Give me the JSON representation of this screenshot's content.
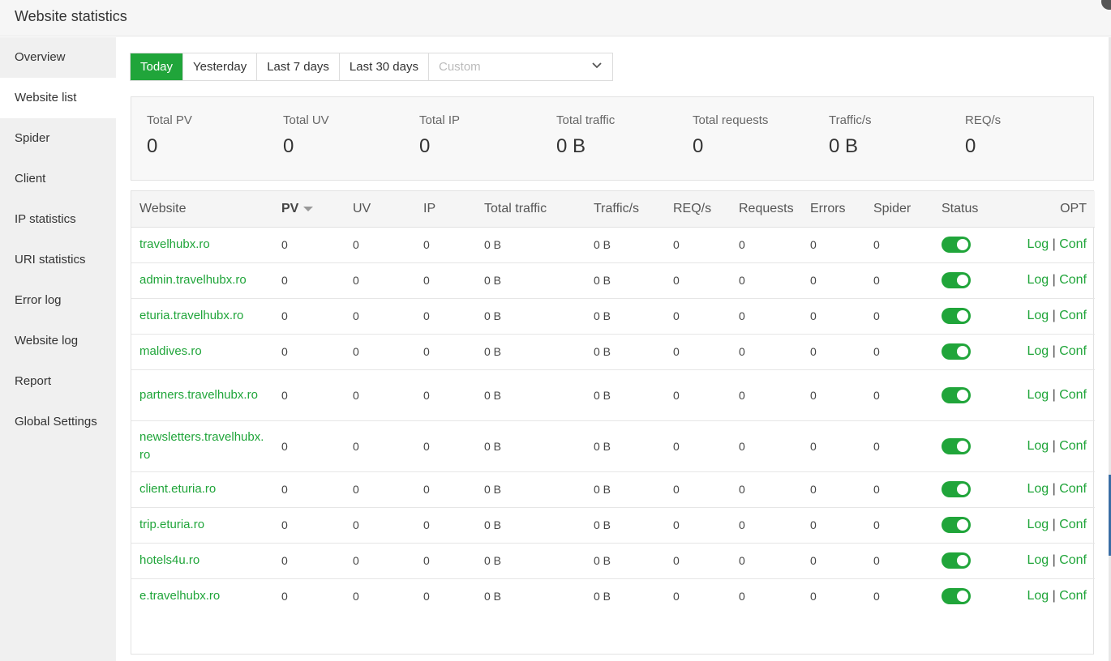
{
  "window": {
    "title": "Website statistics"
  },
  "sidebar": {
    "items": [
      {
        "label": "Overview",
        "active": false
      },
      {
        "label": "Website list",
        "active": true
      },
      {
        "label": "Spider",
        "active": false
      },
      {
        "label": "Client",
        "active": false
      },
      {
        "label": "IP statistics",
        "active": false
      },
      {
        "label": "URI statistics",
        "active": false
      },
      {
        "label": "Error log",
        "active": false
      },
      {
        "label": "Website log",
        "active": false
      },
      {
        "label": "Report",
        "active": false
      },
      {
        "label": "Global Settings",
        "active": false
      }
    ]
  },
  "date_tabs": {
    "today": "Today",
    "yesterday": "Yesterday",
    "last7": "Last 7 days",
    "last30": "Last 30 days",
    "custom_placeholder": "Custom"
  },
  "summary": {
    "total_pv": {
      "label": "Total PV",
      "value": "0"
    },
    "total_uv": {
      "label": "Total UV",
      "value": "0"
    },
    "total_ip": {
      "label": "Total IP",
      "value": "0"
    },
    "total_traffic": {
      "label": "Total traffic",
      "value": "0 B"
    },
    "total_requests": {
      "label": "Total requests",
      "value": "0"
    },
    "traffic_s": {
      "label": "Traffic/s",
      "value": "0 B"
    },
    "req_s": {
      "label": "REQ/s",
      "value": "0"
    }
  },
  "table": {
    "headers": {
      "website": "Website",
      "pv": "PV",
      "uv": "UV",
      "ip": "IP",
      "total_traffic": "Total traffic",
      "traffic_s": "Traffic/s",
      "req_s": "REQ/s",
      "requests": "Requests",
      "errors": "Errors",
      "spider": "Spider",
      "status": "Status",
      "opt": "OPT"
    },
    "log_label": "Log",
    "conf_label": "Conf",
    "separator": "|",
    "rows": [
      {
        "site": "travelhubx.ro",
        "pv": "0",
        "uv": "0",
        "ip": "0",
        "traffic": "0 B",
        "traffic_s": "0 B",
        "req_s": "0",
        "requests": "0",
        "errors": "0",
        "spider": "0",
        "status": true
      },
      {
        "site": "admin.travelhubx.ro",
        "pv": "0",
        "uv": "0",
        "ip": "0",
        "traffic": "0 B",
        "traffic_s": "0 B",
        "req_s": "0",
        "requests": "0",
        "errors": "0",
        "spider": "0",
        "status": true
      },
      {
        "site": "eturia.travelhubx.ro",
        "pv": "0",
        "uv": "0",
        "ip": "0",
        "traffic": "0 B",
        "traffic_s": "0 B",
        "req_s": "0",
        "requests": "0",
        "errors": "0",
        "spider": "0",
        "status": true
      },
      {
        "site": "maldives.ro",
        "pv": "0",
        "uv": "0",
        "ip": "0",
        "traffic": "0 B",
        "traffic_s": "0 B",
        "req_s": "0",
        "requests": "0",
        "errors": "0",
        "spider": "0",
        "status": true
      },
      {
        "site": "partners.travelhubx.ro",
        "pv": "0",
        "uv": "0",
        "ip": "0",
        "traffic": "0 B",
        "traffic_s": "0 B",
        "req_s": "0",
        "requests": "0",
        "errors": "0",
        "spider": "0",
        "status": true
      },
      {
        "site": "newsletters.travelhubx.ro",
        "pv": "0",
        "uv": "0",
        "ip": "0",
        "traffic": "0 B",
        "traffic_s": "0 B",
        "req_s": "0",
        "requests": "0",
        "errors": "0",
        "spider": "0",
        "status": true
      },
      {
        "site": "client.eturia.ro",
        "pv": "0",
        "uv": "0",
        "ip": "0",
        "traffic": "0 B",
        "traffic_s": "0 B",
        "req_s": "0",
        "requests": "0",
        "errors": "0",
        "spider": "0",
        "status": true
      },
      {
        "site": "trip.eturia.ro",
        "pv": "0",
        "uv": "0",
        "ip": "0",
        "traffic": "0 B",
        "traffic_s": "0 B",
        "req_s": "0",
        "requests": "0",
        "errors": "0",
        "spider": "0",
        "status": true
      },
      {
        "site": "hotels4u.ro",
        "pv": "0",
        "uv": "0",
        "ip": "0",
        "traffic": "0 B",
        "traffic_s": "0 B",
        "req_s": "0",
        "requests": "0",
        "errors": "0",
        "spider": "0",
        "status": true
      },
      {
        "site": "e.travelhubx.ro",
        "pv": "0",
        "uv": "0",
        "ip": "0",
        "traffic": "0 B",
        "traffic_s": "0 B",
        "req_s": "0",
        "requests": "0",
        "errors": "0",
        "spider": "0",
        "status": true
      }
    ]
  },
  "colors": {
    "accent": "#20a53a",
    "sidebar_bg": "#f0f0f0",
    "summary_bg": "#f8f8f8"
  },
  "icons": {
    "close": "close-icon",
    "dropdown": "chevron-down-icon",
    "sort": "sort-down-icon"
  }
}
